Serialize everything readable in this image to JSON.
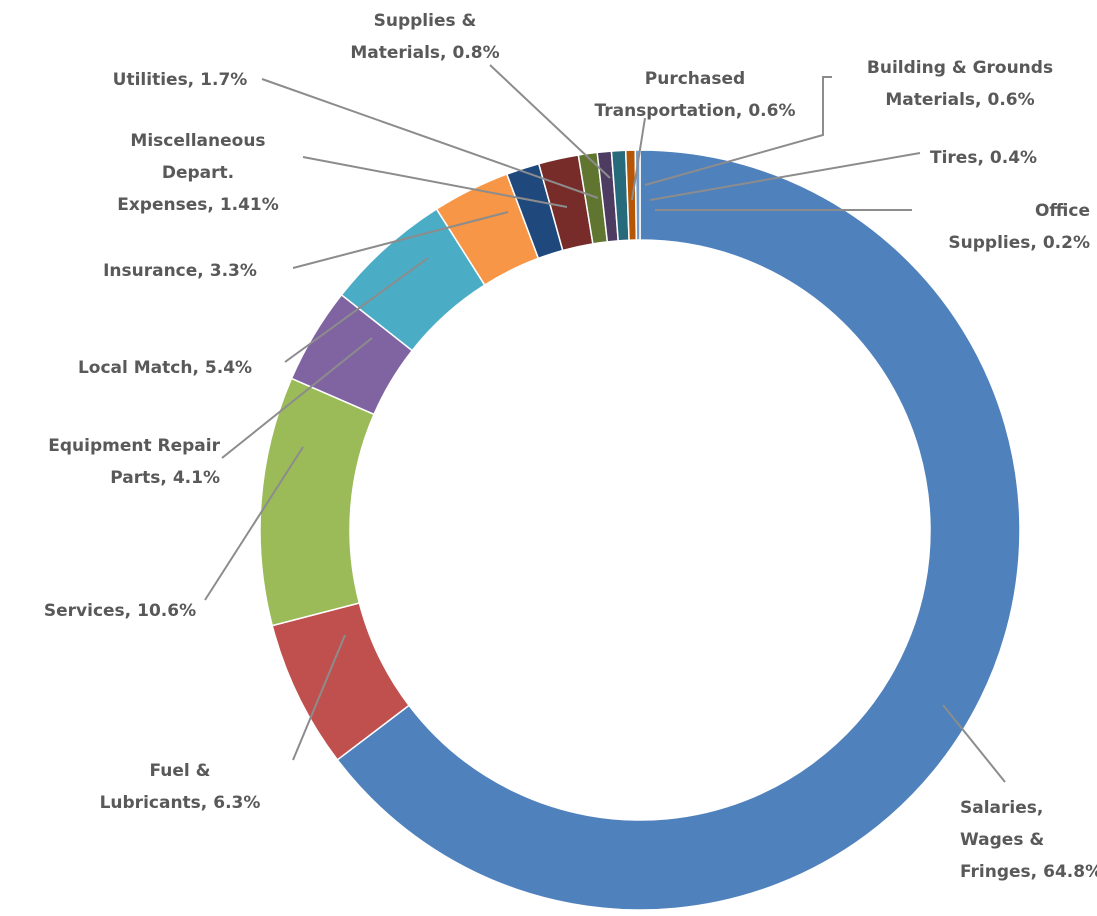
{
  "chart_data": {
    "type": "donut",
    "categories": [
      "Salaries, Wages & Fringes,",
      "Fuel & Lubricants,",
      "Services,",
      "Equipment Repair Parts,",
      "Local Match,",
      "Insurance,",
      "Miscellaneous Depart. Expenses,",
      "Utilities,",
      "Supplies & Materials,",
      "Purchased Transportation,",
      "Building & Grounds Materials,",
      "Tires,",
      "Office Supplies,"
    ],
    "values": [
      64.8,
      6.3,
      10.6,
      4.1,
      5.4,
      3.3,
      1.41,
      1.7,
      0.8,
      0.6,
      0.6,
      0.4,
      0.2
    ],
    "value_labels": [
      "64.8%",
      "6.3%",
      "10.6%",
      "4.1%",
      "5.4%",
      "3.3%",
      "1.41%",
      "1.7%",
      "0.8%",
      "0.6%",
      "0.6%",
      "0.4%",
      "0.2%"
    ],
    "colors": [
      "#4f81bd",
      "#c0504d",
      "#9bbb59",
      "#8064a2",
      "#4bacc6",
      "#f79646",
      "#1f497d",
      "#772c2a",
      "#5f7530",
      "#4d3b62",
      "#276a7c",
      "#b65708",
      "#729aca"
    ]
  }
}
